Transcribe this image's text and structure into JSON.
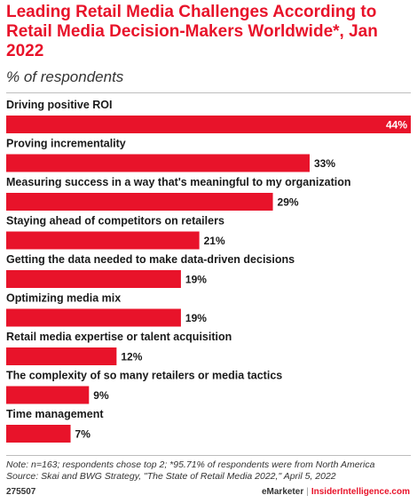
{
  "header": {
    "title": "Leading Retail Media Challenges According to Retail Media Decision-Makers Worldwide*, Jan 2022",
    "subtitle": "% of respondents"
  },
  "colors": {
    "bar": "#e8132a",
    "title": "#e8132a"
  },
  "chart_data": {
    "type": "bar",
    "orientation": "horizontal",
    "categories": [
      "Driving positive ROI",
      "Proving incrementality",
      "Measuring success in a way that's meaningful to my organization",
      "Staying ahead of competitors on retailers",
      "Getting the data needed to make data-driven decisions",
      "Optimizing media mix",
      "Retail media expertise or talent acquisition",
      "The complexity of so many retailers or media tactics",
      "Time management"
    ],
    "values": [
      44,
      33,
      29,
      21,
      19,
      19,
      12,
      9,
      7
    ],
    "value_labels": [
      "44%",
      "33%",
      "29%",
      "21%",
      "19%",
      "19%",
      "12%",
      "9%",
      "7%"
    ],
    "xlim": [
      0,
      44
    ],
    "grid": false,
    "legend": "none"
  },
  "footer": {
    "note_line1": "Note: n=163; respondents chose top 2; *95.71% of respondents were from North America",
    "note_line2": "Source: Skai and BWG Strategy, \"The State of Retail Media 2022,\" April 5, 2022",
    "chart_id": "275507",
    "brand_emarketer": "eMarketer",
    "brand_separator": "|",
    "brand_insider": "InsiderIntelligence.com"
  }
}
